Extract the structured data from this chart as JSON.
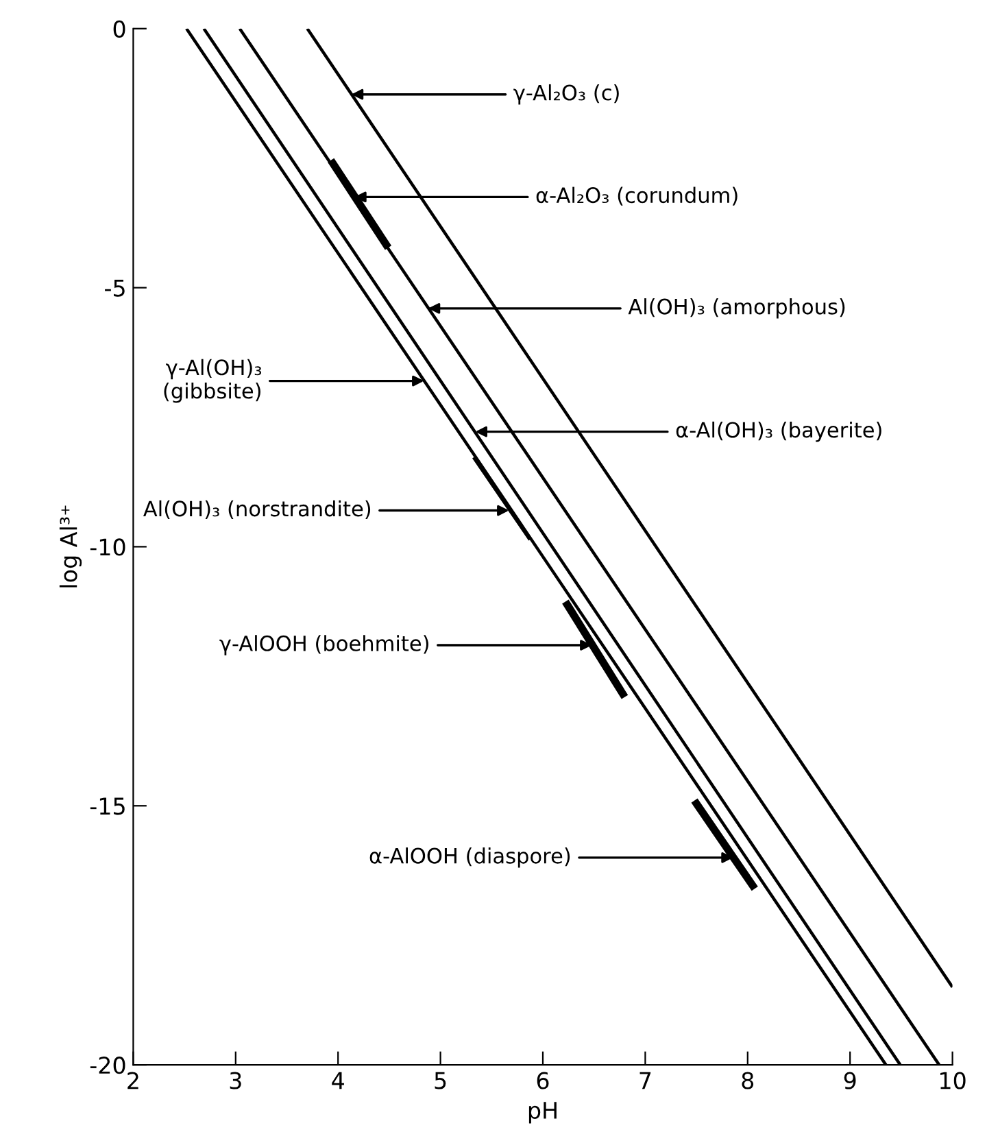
{
  "chart_data": {
    "type": "line",
    "xlabel": "pH",
    "ylabel": "log Al³⁺",
    "xlim": [
      2,
      10
    ],
    "ylim": [
      -20,
      0
    ],
    "xticks": [
      2,
      3,
      4,
      5,
      6,
      7,
      8,
      9,
      10
    ],
    "yticks": [
      0,
      -5,
      -10,
      -15,
      -20
    ],
    "grid": false,
    "legend": false,
    "marker": "none",
    "line_style": "solid",
    "series": [
      {
        "color": "#000000",
        "x": [
          2.52,
          9.35
        ],
        "values": [
          0,
          -20
        ]
      },
      {
        "color": "#000000",
        "x": [
          2.69,
          9.49
        ],
        "values": [
          0,
          -20
        ]
      },
      {
        "color": "#000000",
        "x": [
          3.04,
          9.87
        ],
        "values": [
          0,
          -20
        ]
      },
      {
        "color": "#000000",
        "x": [
          3.7,
          10
        ],
        "values": [
          0,
          -18.5
        ]
      },
      {
        "color": "#000000",
        "x": [
          3.93,
          4.49
        ],
        "values": [
          -2.54,
          -4.23
        ]
      },
      {
        "color": "#000000",
        "x": [
          5.32,
          5.87
        ],
        "values": [
          -8.28,
          -9.87
        ]
      },
      {
        "color": "#000000",
        "x": [
          6.22,
          6.8
        ],
        "values": [
          -11.06,
          -12.9
        ]
      },
      {
        "color": "#000000",
        "x": [
          7.48,
          8.07
        ],
        "values": [
          -14.9,
          -16.6
        ]
      }
    ],
    "annotations": [
      {
        "text": "γ-Al₂O₃ (c)",
        "x": 4.13,
        "y": -1.27
      },
      {
        "text": "α-Al₂O₃ (corundum)",
        "x": 4.16,
        "y": -3.25
      },
      {
        "text": "Al(OH)₃ (amorphous)",
        "x": 4.88,
        "y": -5.4
      },
      {
        "text": "γ-Al(OH)₃\n(gibbsite)",
        "x": 4.84,
        "y": -6.8
      },
      {
        "text": "α-Al(OH)₃ (bayerite)",
        "x": 5.34,
        "y": -7.78
      },
      {
        "text": "Al(OH)₃ (norstrandite)",
        "x": 5.67,
        "y": -9.3
      },
      {
        "text": "γ-AlOOH (boehmite)",
        "x": 6.48,
        "y": -11.9
      },
      {
        "text": "α-AlOOH (diaspore)",
        "x": 7.86,
        "y": -16.0
      }
    ]
  }
}
